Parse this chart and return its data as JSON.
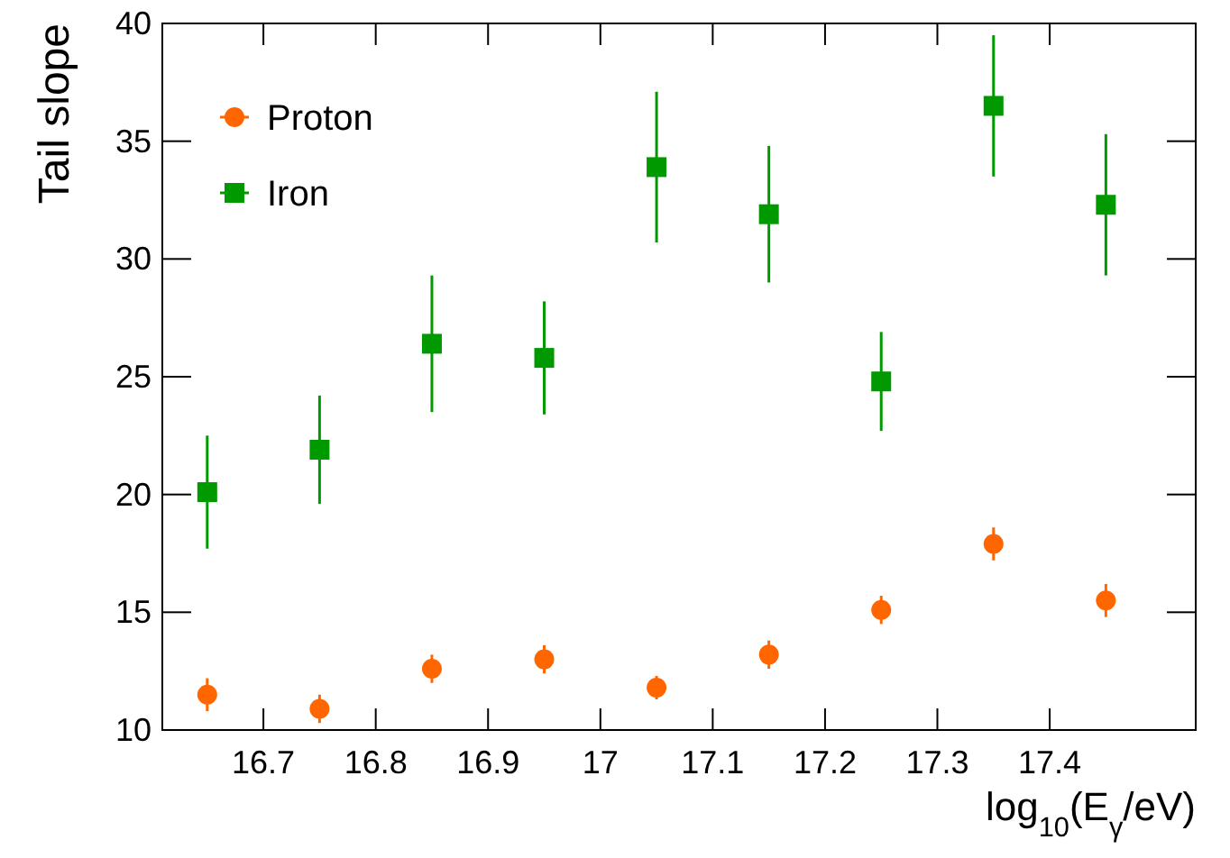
{
  "chart_data": {
    "type": "scatter",
    "xlabel": "log$_{10}$(E$_{γ}$/eV)",
    "ylabel": "Tail slope",
    "x": [
      16.65,
      16.75,
      16.85,
      16.95,
      17.05,
      17.15,
      17.25,
      17.35,
      17.45
    ],
    "series": [
      {
        "name": "Proton",
        "color": "#ff6600",
        "marker": "circle",
        "values": [
          11.5,
          10.9,
          12.6,
          13.0,
          11.8,
          13.2,
          15.1,
          17.9,
          15.5
        ],
        "errors": [
          0.7,
          0.6,
          0.6,
          0.6,
          0.5,
          0.6,
          0.6,
          0.7,
          0.7
        ]
      },
      {
        "name": "Iron",
        "color": "#009900",
        "marker": "square",
        "values": [
          20.1,
          21.9,
          26.4,
          25.8,
          33.9,
          31.9,
          24.8,
          36.5,
          32.3
        ],
        "errors": [
          2.4,
          2.3,
          2.9,
          2.4,
          3.2,
          2.9,
          2.1,
          3.0,
          3.0
        ]
      }
    ],
    "xlim": [
      16.61,
      17.53
    ],
    "xticks": [
      16.7,
      16.8,
      16.9,
      17,
      17.1,
      17.2,
      17.3,
      17.4
    ],
    "ylim": [
      10,
      40
    ],
    "yticks": [
      10,
      15,
      20,
      25,
      30,
      35,
      40
    ],
    "grid": false,
    "legend": "top left"
  }
}
